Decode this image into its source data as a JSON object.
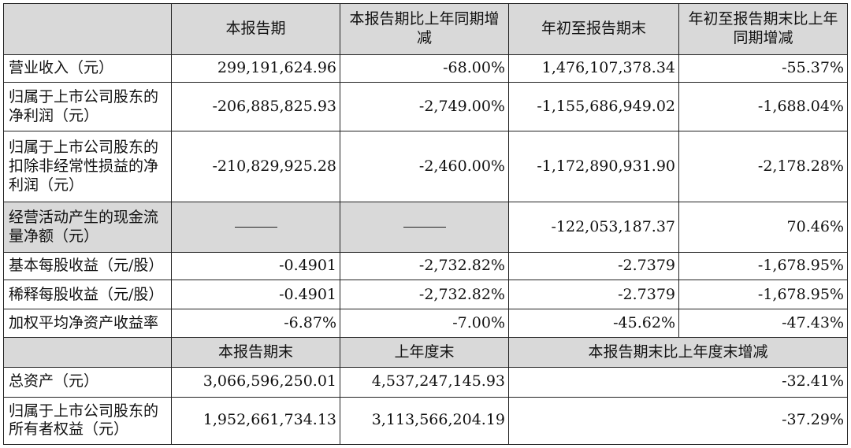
{
  "table": {
    "headers": {
      "col1": "本报告期",
      "col2": "本报告期比上年同期增减",
      "col3": "年初至报告期末",
      "col4": "年初至报告期末比上年同期增减"
    },
    "rows": [
      {
        "label": "营业收入（元）",
        "v1": "299,191,624.96",
        "v2": "-68.00%",
        "v3": "1,476,107,378.34",
        "v4": "-55.37%"
      },
      {
        "label": "归属于上市公司股东的净利润（元）",
        "v1": "-206,885,825.93",
        "v2": "-2,749.00%",
        "v3": "-1,155,686,949.02",
        "v4": "-1,688.04%"
      },
      {
        "label": "归属于上市公司股东的扣除非经常性损益的净利润（元）",
        "v1": "-210,829,925.28",
        "v2": "-2,460.00%",
        "v3": "-1,172,890,931.90",
        "v4": "-2,178.28%"
      },
      {
        "label": "经营活动产生的现金流量净额（元）",
        "v1": "",
        "v2": "",
        "v3": "-122,053,187.37",
        "v4": "70.46%"
      },
      {
        "label": "基本每股收益（元/股）",
        "v1": "-0.4901",
        "v2": "-2,732.82%",
        "v3": "-2.7379",
        "v4": "-1,678.95%"
      },
      {
        "label": "稀释每股收益（元/股）",
        "v1": "-0.4901",
        "v2": "-2,732.82%",
        "v3": "-2.7379",
        "v4": "-1,678.95%"
      },
      {
        "label": "加权平均净资产收益率",
        "v1": "-6.87%",
        "v2": "-7.00%",
        "v3": "-45.62%",
        "v4": "-47.43%"
      }
    ],
    "headers2": {
      "col1": "本报告期末",
      "col2": "上年度末",
      "col3": "本报告期末比上年度末增减"
    },
    "rows2": [
      {
        "label": "总资产（元）",
        "v1": "3,066,596,250.01",
        "v2": "4,537,247,145.93",
        "v3": "-32.41%"
      },
      {
        "label": "归属于上市公司股东的所有者权益（元）",
        "v1": "1,952,661,734.13",
        "v2": "3,113,566,204.19",
        "v3": "-37.29%"
      }
    ]
  }
}
